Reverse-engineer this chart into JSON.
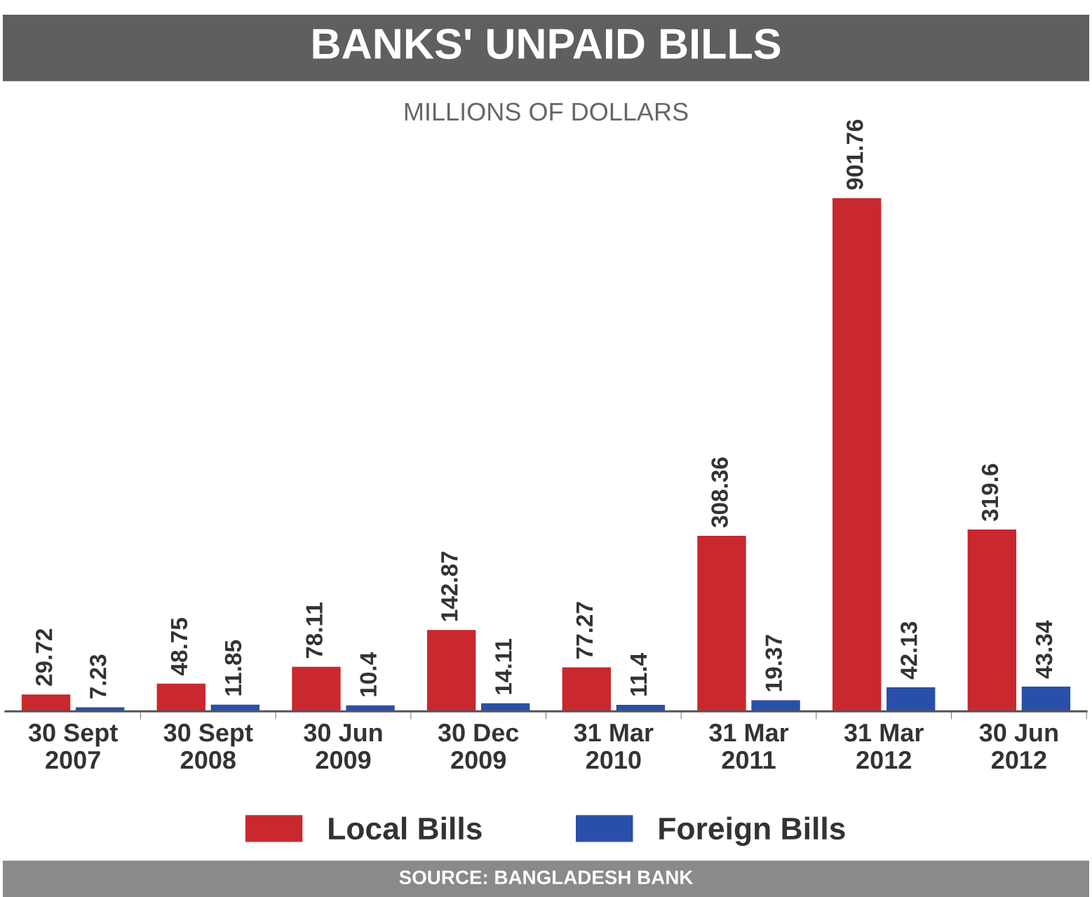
{
  "chart_data": {
    "type": "bar",
    "title": "BANKS' UNPAID BILLS",
    "subtitle": "MILLIONS OF DOLLARS",
    "categories": [
      "30 Sept\n2007",
      "30 Sept\n2008",
      "30 Jun\n2009",
      "30 Dec\n2009",
      "31 Mar\n2010",
      "31 Mar\n2011",
      "31 Mar\n2012",
      "30 Jun\n2012"
    ],
    "series": [
      {
        "name": "Local Bills",
        "color": "#c8282e",
        "values": [
          29.72,
          48.75,
          78.11,
          142.87,
          77.27,
          308.36,
          901.76,
          319.6
        ]
      },
      {
        "name": "Foreign Bills",
        "color": "#2a4fa8",
        "values": [
          7.23,
          11.85,
          10.4,
          14.11,
          11.4,
          19.37,
          42.13,
          43.34
        ]
      }
    ],
    "data_labels": true,
    "legend": "bottom",
    "grid": false,
    "annotations": [
      "SOURCE: BANGLADESH BANK"
    ]
  }
}
